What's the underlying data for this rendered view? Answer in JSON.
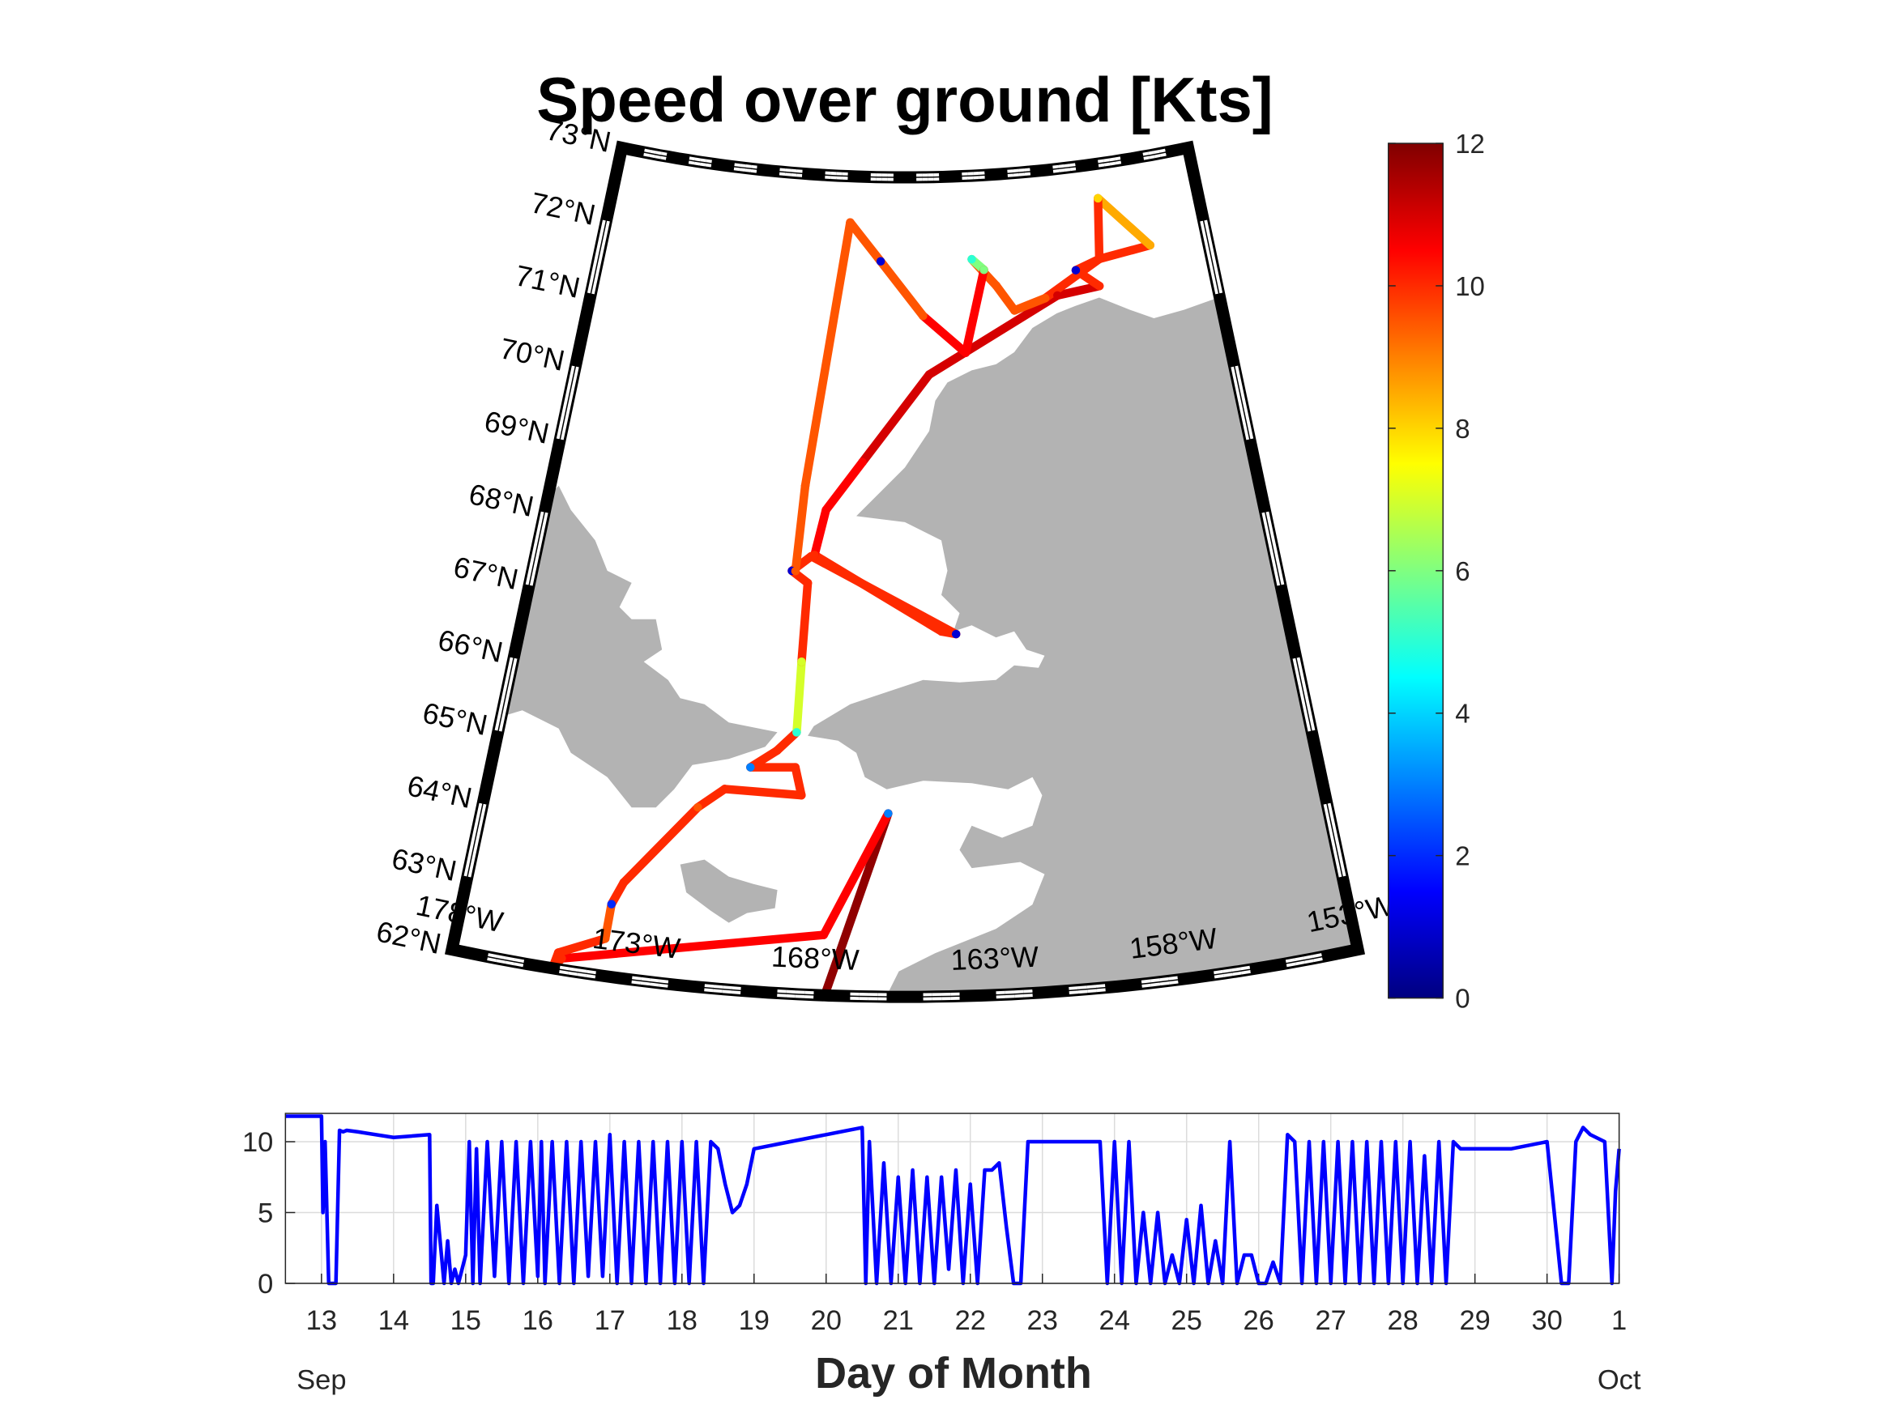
{
  "chart_data": [
    {
      "type": "map",
      "title": "Speed over ground [Kts]",
      "lon": [
        -167.7,
        -166.0,
        -167.79,
        -174.99,
        -175.2,
        -175.11,
        -173.88,
        -173.84,
        -173.58,
        -171.69,
        -170.94,
        -168.62,
        -168.85,
        -170.22,
        -169.44,
        -168.87,
        -168.84,
        -168.78,
        -169.34,
        -168.71,
        -163.82,
        -164.3,
        -168.6,
        -168.28,
        -167.04,
        -164.57,
        -159.37,
        -157.65,
        -158.52,
        -157.51,
        -155.36,
        -157.22,
        -157.51,
        -159.87,
        -161.13,
        -161.8,
        -162.74,
        -162.26,
        -163.14,
        -164.78,
        -166.5,
        -167.82,
        -169.06,
        -169.22
      ],
      "lat": [
        62.0,
        64.46,
        62.81,
        62.15,
        62.0,
        62.22,
        62.5,
        62.97,
        63.28,
        64.4,
        64.68,
        64.67,
        65.04,
        65.0,
        65.25,
        65.51,
        66.46,
        67.52,
        67.67,
        67.88,
        66.86,
        66.9,
        67.9,
        68.51,
        69.17,
        70.35,
        71.31,
        71.37,
        71.62,
        71.73,
        71.81,
        72.54,
        71.73,
        71.29,
        71.16,
        71.51,
        71.88,
        71.73,
        70.63,
        71.14,
        71.87,
        72.38,
        68.82,
        67.67
      ],
      "speed": [
        11.8,
        3,
        10.5,
        10,
        9.5,
        10,
        9.5,
        2,
        10,
        9.5,
        10,
        10,
        10,
        3,
        10,
        5,
        7,
        10,
        1,
        10,
        1,
        10,
        10,
        10.5,
        10.5,
        11,
        11,
        10,
        1,
        10,
        8.5,
        8,
        10,
        9.5,
        9.5,
        9.5,
        5,
        6,
        10.5,
        9.5,
        1,
        9.5,
        9.5,
        9.5
      ],
      "xlim": [
        -178,
        -153
      ],
      "ylim": [
        62,
        73
      ],
      "xticks": [
        {
          "value": -178,
          "label": "178°W"
        },
        {
          "value": -173,
          "label": "173°W"
        },
        {
          "value": -168,
          "label": "168°W"
        },
        {
          "value": -163,
          "label": "163°W"
        },
        {
          "value": -158,
          "label": "158°W"
        },
        {
          "value": -153,
          "label": "153°W"
        }
      ],
      "yticks": [
        {
          "value": 62,
          "label": "62°N"
        },
        {
          "value": 63,
          "label": "63°N"
        },
        {
          "value": 64,
          "label": "64°N"
        },
        {
          "value": 65,
          "label": "65°N"
        },
        {
          "value": 66,
          "label": "66°N"
        },
        {
          "value": 67,
          "label": "67°N"
        },
        {
          "value": 68,
          "label": "68°N"
        },
        {
          "value": 69,
          "label": "69°N"
        },
        {
          "value": 70,
          "label": "70°N"
        },
        {
          "value": 71,
          "label": "71°N"
        },
        {
          "value": 72,
          "label": "72°N"
        },
        {
          "value": 73,
          "label": "73°N"
        }
      ],
      "colormap": "jet",
      "clim": [
        0,
        12
      ],
      "cticks": [
        0,
        2,
        4,
        6,
        8,
        10,
        12
      ]
    },
    {
      "type": "line",
      "xlabel": "Day of Month",
      "month_labels": [
        "Sep",
        "Oct"
      ],
      "color": "#0000ff",
      "grid": true,
      "x": [
        12.5,
        13,
        13.02,
        13.05,
        13.1,
        13.15,
        13.2,
        13.25,
        13.3,
        13.35,
        13.5,
        14,
        14.5,
        14.52,
        14.55,
        14.6,
        14.7,
        14.75,
        14.8,
        14.85,
        14.9,
        15,
        15.05,
        15.1,
        15.15,
        15.2,
        15.3,
        15.4,
        15.5,
        15.6,
        15.7,
        15.8,
        15.9,
        16,
        16.05,
        16.1,
        16.2,
        16.3,
        16.4,
        16.5,
        16.6,
        16.7,
        16.8,
        16.9,
        17,
        17.1,
        17.2,
        17.3,
        17.4,
        17.5,
        17.6,
        17.7,
        17.8,
        17.9,
        18,
        18.1,
        18.2,
        18.3,
        18.4,
        18.5,
        18.6,
        18.7,
        18.8,
        18.9,
        19,
        19.5,
        20,
        20.5,
        20.55,
        20.6,
        20.7,
        20.8,
        20.9,
        21,
        21.1,
        21.2,
        21.3,
        21.4,
        21.5,
        21.6,
        21.7,
        21.8,
        21.9,
        22,
        22.1,
        22.2,
        22.3,
        22.4,
        22.5,
        22.6,
        22.7,
        22.8,
        22.9,
        23,
        23.2,
        23.4,
        23.6,
        23.8,
        23.9,
        24,
        24.1,
        24.2,
        24.3,
        24.4,
        24.5,
        24.6,
        24.7,
        24.8,
        24.9,
        25,
        25.1,
        25.2,
        25.3,
        25.4,
        25.5,
        25.6,
        25.7,
        25.8,
        25.9,
        26,
        26.1,
        26.2,
        26.3,
        26.4,
        26.5,
        26.6,
        26.7,
        26.8,
        26.9,
        27,
        27.1,
        27.2,
        27.3,
        27.4,
        27.5,
        27.6,
        27.7,
        27.8,
        27.9,
        28,
        28.1,
        28.2,
        28.3,
        28.4,
        28.5,
        28.6,
        28.7,
        28.8,
        28.9,
        29,
        29.5,
        30,
        30.2,
        30.3,
        30.4,
        30.5,
        30.6,
        30.8,
        30.9,
        30.95,
        31
      ],
      "values": [
        11.8,
        11.8,
        5,
        10,
        0,
        0,
        0,
        10.8,
        10.7,
        10.8,
        10.7,
        10.3,
        10.5,
        0,
        0,
        5.5,
        0,
        3,
        0,
        1,
        0,
        2,
        10,
        0,
        9.5,
        0,
        10,
        0.5,
        10,
        0,
        10,
        0,
        10,
        0.5,
        10,
        0,
        10,
        0,
        10,
        0,
        10,
        0.5,
        10,
        0.5,
        10.5,
        0,
        10,
        0,
        10,
        0,
        10,
        0,
        10,
        0,
        10,
        0,
        10,
        0,
        10,
        9.5,
        7,
        5,
        5.5,
        7,
        9.5,
        10,
        10.5,
        11,
        0,
        10,
        0,
        8.5,
        0,
        7.5,
        0,
        8,
        0,
        7.5,
        0,
        7.5,
        1,
        8,
        0,
        7,
        0,
        8,
        8,
        8.5,
        4,
        0,
        0,
        10,
        10,
        10,
        10,
        10,
        10,
        10,
        0,
        10,
        0,
        10,
        0,
        5,
        0,
        5,
        0,
        2,
        0,
        4.5,
        0,
        5.5,
        0,
        3,
        0,
        10,
        0,
        2,
        2,
        0,
        0,
        1.5,
        0,
        10.5,
        10,
        0,
        10,
        0,
        10,
        0,
        10,
        0,
        10,
        0,
        10,
        0,
        10,
        0,
        10,
        0,
        10,
        0,
        9,
        0,
        10,
        0,
        10,
        9.5,
        9.5,
        9.5,
        9.5,
        10,
        0,
        0,
        10,
        11,
        10.5,
        10,
        0,
        6.5,
        9.5
      ],
      "xlim": [
        12.5,
        31
      ],
      "ylim": [
        0,
        12
      ],
      "xticks": [
        13,
        14,
        15,
        16,
        17,
        18,
        19,
        20,
        21,
        22,
        23,
        24,
        25,
        26,
        27,
        28,
        29,
        30,
        {
          "value": 31,
          "label": "1"
        }
      ],
      "yticks": [
        0,
        5,
        10
      ]
    }
  ]
}
